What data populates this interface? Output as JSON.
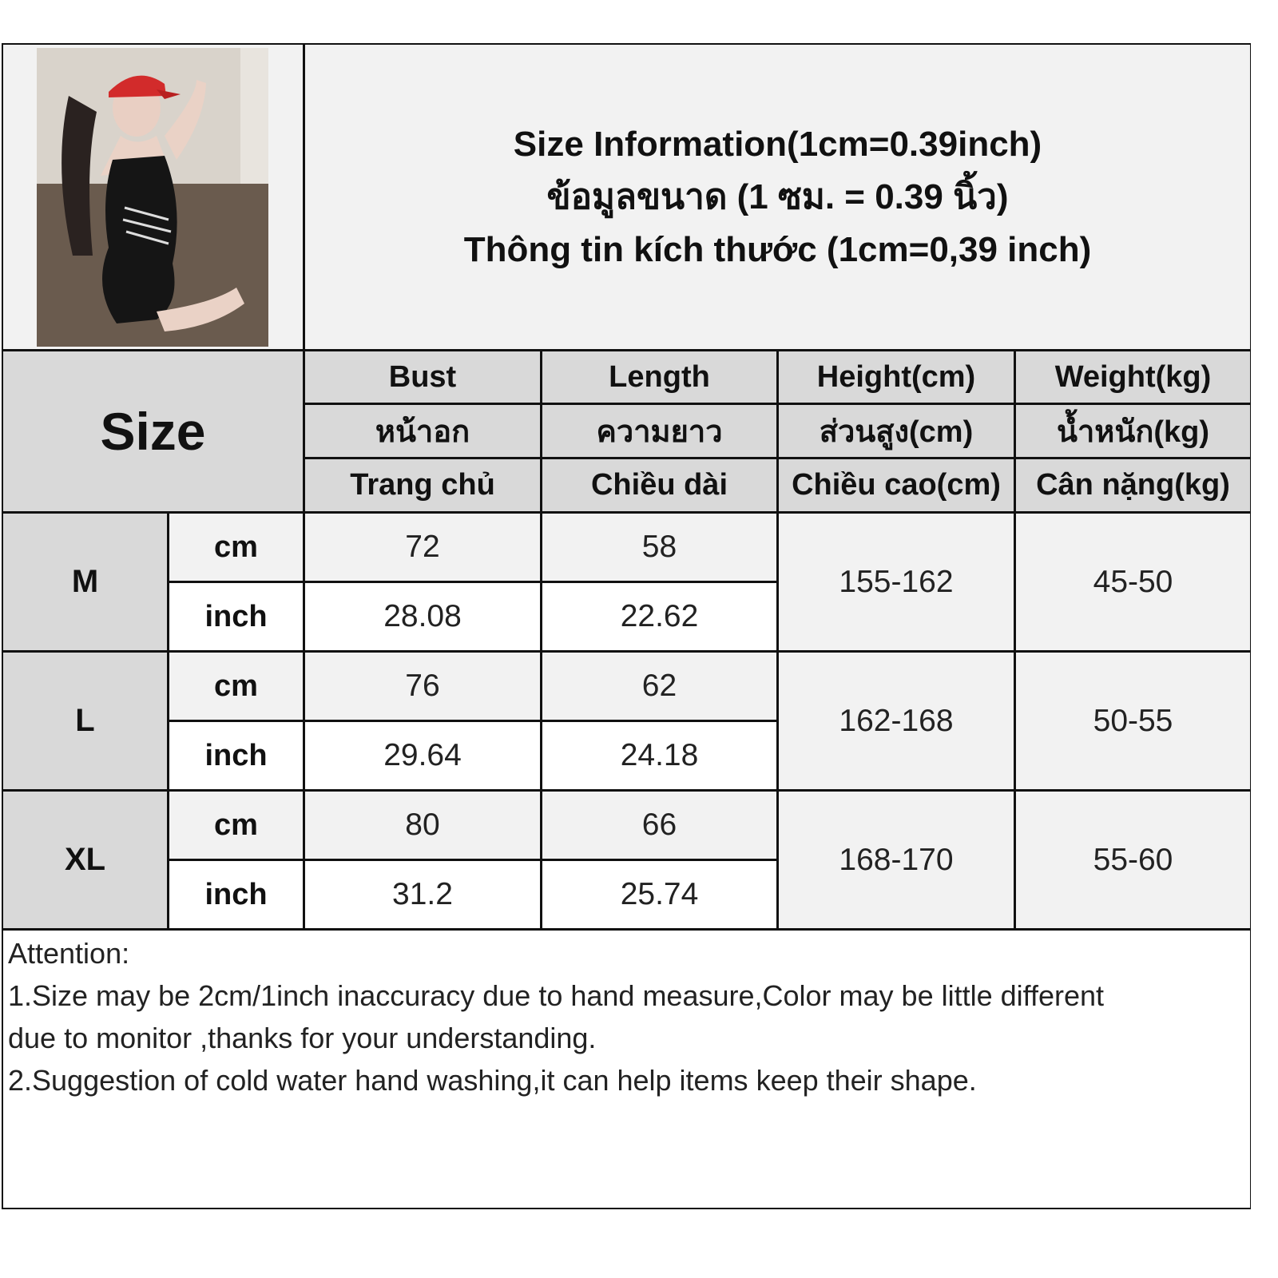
{
  "title": {
    "line_en": "Size Information(1cm=0.39inch)",
    "line_th": "ข้อมูลขนาด (1 ซม. = 0.39 นิ้ว)",
    "line_vi": "Thông tin kích thước (1cm=0,39 inch)"
  },
  "size_header": "Size",
  "columns": [
    {
      "en": "Bust",
      "th": "หน้าอก",
      "vi": "Trang chủ"
    },
    {
      "en": "Length",
      "th": "ความยาว",
      "vi": "Chiều dài"
    },
    {
      "en": "Height(cm)",
      "th": "ส่วนสูง(cm)",
      "vi": "Chiều cao(cm)"
    },
    {
      "en": "Weight(kg)",
      "th": "น้ำหนัก(kg)",
      "vi": "Cân nặng(kg)"
    }
  ],
  "units": {
    "cm": "cm",
    "inch": "inch"
  },
  "rows": [
    {
      "size": "M",
      "bust_cm": "72",
      "bust_inch": "28.08",
      "length_cm": "58",
      "length_inch": "22.62",
      "height": "155-162",
      "weight": "45-50"
    },
    {
      "size": "L",
      "bust_cm": "76",
      "bust_inch": "29.64",
      "length_cm": "62",
      "length_inch": "24.18",
      "height": "162-168",
      "weight": "50-55"
    },
    {
      "size": "XL",
      "bust_cm": "80",
      "bust_inch": "31.2",
      "length_cm": "66",
      "length_inch": "25.74",
      "height": "168-170",
      "weight": "55-60"
    }
  ],
  "attention": {
    "heading": "Attention:",
    "line1a": "1.Size may be 2cm/1inch inaccuracy due to hand measure,Color may be little different",
    "line1b": "due to monitor ,thanks for your understanding.",
    "line2": "2.Suggestion of cold water hand washing,it can help items keep their shape."
  },
  "colors": {
    "header_gray": "#d9d9d9",
    "light_gray": "#f2f2f2",
    "border": "#111111"
  }
}
